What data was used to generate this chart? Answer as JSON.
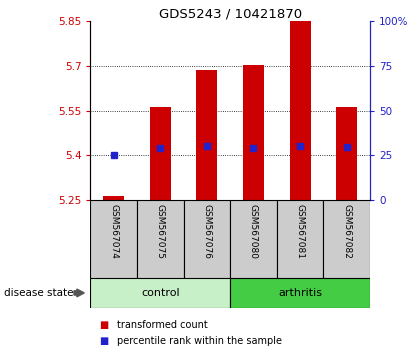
{
  "title": "GDS5243 / 10421870",
  "samples": [
    "GSM567074",
    "GSM567075",
    "GSM567076",
    "GSM567080",
    "GSM567081",
    "GSM567082"
  ],
  "red_bar_tops": [
    5.264,
    5.563,
    5.685,
    5.703,
    5.85,
    5.562
  ],
  "blue_square_vals": [
    5.402,
    5.425,
    5.432,
    5.423,
    5.432,
    5.428
  ],
  "bar_bottom": 5.25,
  "ylim_left": [
    5.25,
    5.85
  ],
  "ylim_right": [
    0,
    100
  ],
  "yticks_left": [
    5.25,
    5.4,
    5.55,
    5.7,
    5.85
  ],
  "yticks_right": [
    0,
    25,
    50,
    75,
    100
  ],
  "ytick_labels_right": [
    "0",
    "25",
    "50",
    "75",
    "100%"
  ],
  "grid_vals": [
    5.4,
    5.55,
    5.7
  ],
  "bar_color": "#cc0000",
  "blue_color": "#2222cc",
  "left_axis_color": "#cc0000",
  "right_axis_color": "#2222cc",
  "groups": [
    {
      "label": "control",
      "n": 3,
      "color": "#c8f0c8"
    },
    {
      "label": "arthritis",
      "n": 3,
      "color": "#44cc44"
    }
  ],
  "gray_box_color": "#cccccc",
  "disease_state_label": "disease state",
  "legend_items": [
    {
      "label": "transformed count",
      "color": "#cc0000"
    },
    {
      "label": "percentile rank within the sample",
      "color": "#2222cc"
    }
  ],
  "fig_width": 4.11,
  "fig_height": 3.54,
  "dpi": 100
}
